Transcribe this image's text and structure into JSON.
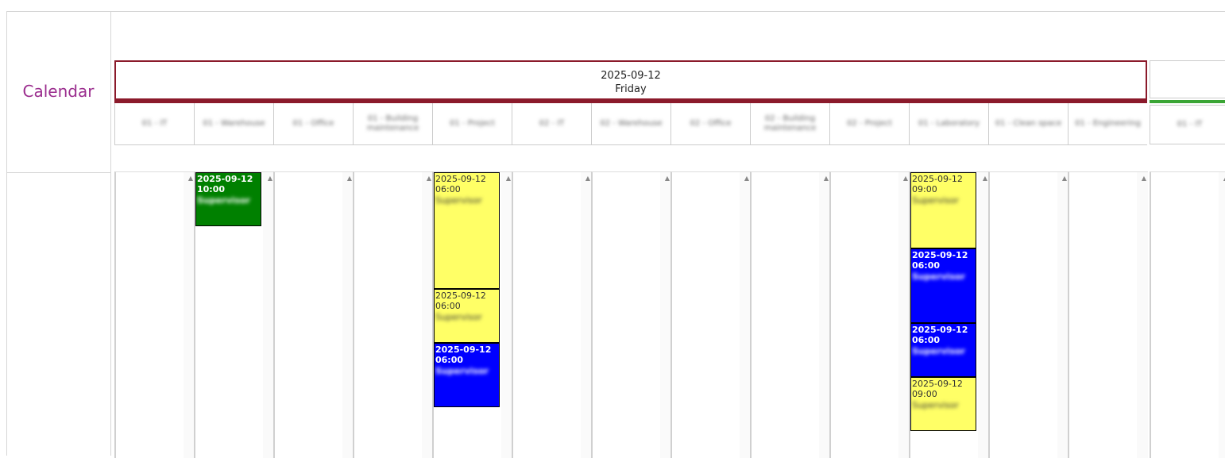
{
  "sidebar": {
    "label": "Calendar"
  },
  "day": {
    "date": "2025-09-12",
    "weekday": "Friday",
    "accent": "#8b1a2b"
  },
  "next_day": {
    "accent": "#3aa535",
    "columns": [
      "01 - IT"
    ]
  },
  "columns": [
    "01 - IT",
    "01 - Warehouse",
    "01 - Office",
    "01 - Building maintenance",
    "01 - Project",
    "02 - IT",
    "02 - Warehouse",
    "02 - Office",
    "02 - Building maintenance",
    "02 - Project",
    "01 - Laboratory",
    "01 - Clean space",
    "01 - Engineering"
  ],
  "icons": {
    "scroll_up": "triangle-up-icon"
  },
  "colors": {
    "green": "#008000",
    "yellow": "#ffff66",
    "blue": "#0000ff"
  },
  "events": [
    {
      "column": 1,
      "color": "green",
      "date": "2025-09-12",
      "time": "10:00",
      "detail": "Supervisor"
    },
    {
      "column": 4,
      "color": "yellow",
      "date": "2025-09-12",
      "time": "06:00",
      "detail": "Supervisor"
    },
    {
      "column": 4,
      "color": "yellow",
      "date": "2025-09-12",
      "time": "06:00",
      "detail": "Supervisor"
    },
    {
      "column": 4,
      "color": "blue",
      "date": "2025-09-12",
      "time": "06:00",
      "detail": "Supervisor"
    },
    {
      "column": 10,
      "color": "yellow",
      "date": "2025-09-12",
      "time": "09:00",
      "detail": "Supervisor"
    },
    {
      "column": 10,
      "color": "blue",
      "date": "2025-09-12",
      "time": "06:00",
      "detail": "Supervisor"
    },
    {
      "column": 10,
      "color": "blue",
      "date": "2025-09-12",
      "time": "06:00",
      "detail": "Supervisor"
    },
    {
      "column": 10,
      "color": "yellow",
      "date": "2025-09-12",
      "time": "09:00",
      "detail": "Supervisor"
    }
  ]
}
